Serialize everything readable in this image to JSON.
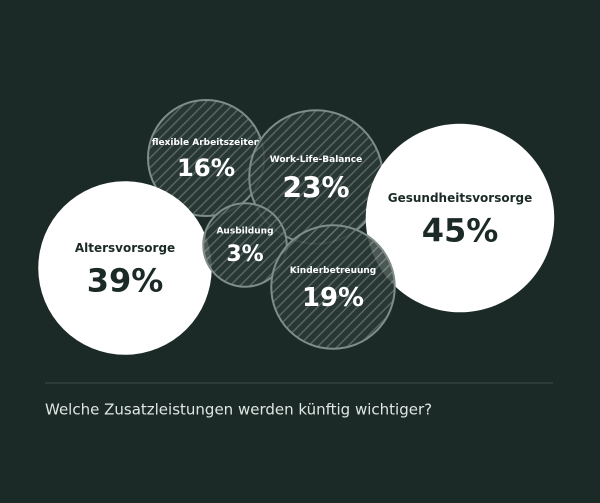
{
  "chart_data": {
    "type": "bubble",
    "categories": [
      "flexible Arbeitszeiten",
      "Work-Life-Balance",
      "Gesundheitsvorsorge",
      "Altersvorsorge",
      "Ausbildung",
      "Kinderbetreuung"
    ],
    "values": [
      16,
      23,
      45,
      39,
      3,
      19
    ],
    "value_labels": [
      "16%",
      "23%",
      "45%",
      "39%",
      "3%",
      "19%"
    ],
    "fills": [
      "hatched",
      "hatched",
      "solid",
      "solid",
      "hatched",
      "hatched"
    ],
    "caption": "Welche Zusatzleistungen werden künftig wichtiger?"
  }
}
